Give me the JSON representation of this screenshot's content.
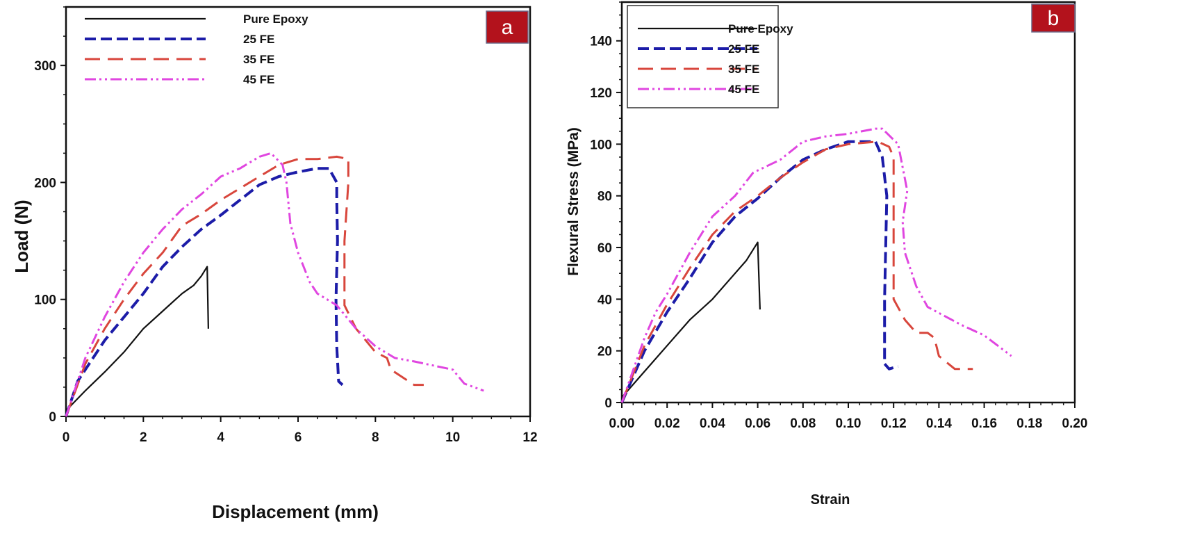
{
  "colors": {
    "pure_epoxy": "#111111",
    "fe25": "#1c1ca8",
    "fe35": "#d8463c",
    "fe45": "#e046e0",
    "badge": "#b3121c"
  },
  "chart_data": [
    {
      "type": "line",
      "panel_label": "a",
      "xlabel": "Displacement (mm)",
      "ylabel": "Load (N)",
      "xlim": [
        0,
        12
      ],
      "ylim": [
        0,
        350
      ],
      "xticks": [
        "0",
        "2",
        "4",
        "6",
        "8",
        "10",
        "12"
      ],
      "xtick_values": [
        0,
        2,
        4,
        6,
        8,
        10,
        12
      ],
      "yticks": [
        "0",
        "100",
        "200",
        "300"
      ],
      "ytick_values": [
        0,
        100,
        200,
        300
      ],
      "legend": "top-left",
      "grid": false,
      "series": [
        {
          "name": "Pure Epoxy",
          "key": "pure_epoxy",
          "points": [
            [
              0,
              5
            ],
            [
              0.5,
              22
            ],
            [
              1,
              38
            ],
            [
              1.5,
              55
            ],
            [
              2,
              75
            ],
            [
              2.5,
              90
            ],
            [
              3,
              105
            ],
            [
              3.3,
              112
            ],
            [
              3.5,
              120
            ],
            [
              3.65,
              128
            ],
            [
              3.68,
              75
            ]
          ]
        },
        {
          "name": "25 FE",
          "key": "fe25",
          "points": [
            [
              0,
              0
            ],
            [
              0.3,
              30
            ],
            [
              1,
              65
            ],
            [
              1.5,
              85
            ],
            [
              2,
              105
            ],
            [
              2.5,
              128
            ],
            [
              3,
              145
            ],
            [
              3.5,
              160
            ],
            [
              4,
              172
            ],
            [
              5,
              198
            ],
            [
              5.5,
              205
            ],
            [
              6,
              209
            ],
            [
              6.5,
              212
            ],
            [
              6.8,
              212
            ],
            [
              7,
              200
            ],
            [
              7,
              185
            ],
            [
              7.02,
              150
            ],
            [
              6.98,
              100
            ],
            [
              7,
              60
            ],
            [
              7.05,
              30
            ],
            [
              7.15,
              27
            ]
          ]
        },
        {
          "name": "35 FE",
          "key": "fe35",
          "points": [
            [
              0,
              0
            ],
            [
              0.5,
              45
            ],
            [
              1,
              75
            ],
            [
              1.5,
              100
            ],
            [
              2,
              122
            ],
            [
              2.5,
              140
            ],
            [
              3,
              163
            ],
            [
              3.5,
              173
            ],
            [
              4,
              185
            ],
            [
              5,
              205
            ],
            [
              5.5,
              215
            ],
            [
              6,
              220
            ],
            [
              6.5,
              220
            ],
            [
              7,
              222
            ],
            [
              7.3,
              220
            ],
            [
              7.3,
              200
            ],
            [
              7.2,
              150
            ],
            [
              7.2,
              95
            ],
            [
              7.5,
              75
            ],
            [
              8,
              55
            ],
            [
              8.3,
              50
            ],
            [
              8.4,
              40
            ],
            [
              9,
              27
            ],
            [
              9.25,
              27
            ]
          ]
        },
        {
          "name": "45 FE",
          "key": "fe45",
          "points": [
            [
              0,
              0
            ],
            [
              0.5,
              50
            ],
            [
              1,
              85
            ],
            [
              1.5,
              115
            ],
            [
              2,
              140
            ],
            [
              2.5,
              160
            ],
            [
              3,
              177
            ],
            [
              3.5,
              190
            ],
            [
              4,
              205
            ],
            [
              4.5,
              212
            ],
            [
              5,
              222
            ],
            [
              5.3,
              225
            ],
            [
              5.6,
              215
            ],
            [
              5.7,
              200
            ],
            [
              5.8,
              165
            ],
            [
              6,
              140
            ],
            [
              6.3,
              115
            ],
            [
              6.5,
              105
            ],
            [
              7,
              95
            ],
            [
              7.5,
              75
            ],
            [
              8,
              60
            ],
            [
              8.5,
              50
            ],
            [
              9,
              47
            ],
            [
              10,
              40
            ],
            [
              10.3,
              28
            ],
            [
              10.8,
              22
            ]
          ]
        }
      ]
    },
    {
      "type": "line",
      "panel_label": "b",
      "xlabel": "Strain",
      "ylabel": "Flexural Stress (MPa)",
      "xlim": [
        0,
        0.2
      ],
      "ylim": [
        0,
        155
      ],
      "xticks": [
        "0.00",
        "0.02",
        "0.04",
        "0.06",
        "0.08",
        "0.10",
        "0.12",
        "0.14",
        "0.16",
        "0.18",
        "0.20"
      ],
      "xtick_values": [
        0,
        0.02,
        0.04,
        0.06,
        0.08,
        0.1,
        0.12,
        0.14,
        0.16,
        0.18,
        0.2
      ],
      "yticks": [
        "0",
        "20",
        "40",
        "60",
        "80",
        "100",
        "120",
        "140"
      ],
      "ytick_values": [
        0,
        20,
        40,
        60,
        80,
        100,
        120,
        140
      ],
      "legend": "top-left (boxed)",
      "grid": false,
      "series": [
        {
          "name": "Pure Epoxy",
          "key": "pure_epoxy",
          "points": [
            [
              0,
              2
            ],
            [
              0.01,
              12
            ],
            [
              0.02,
              22
            ],
            [
              0.03,
              32
            ],
            [
              0.04,
              40
            ],
            [
              0.05,
              50
            ],
            [
              0.055,
              55
            ],
            [
              0.06,
              62
            ],
            [
              0.061,
              36
            ]
          ]
        },
        {
          "name": "25 FE",
          "key": "fe25",
          "points": [
            [
              0,
              0
            ],
            [
              0.01,
              20
            ],
            [
              0.02,
              35
            ],
            [
              0.03,
              48
            ],
            [
              0.04,
              62
            ],
            [
              0.05,
              72
            ],
            [
              0.06,
              79
            ],
            [
              0.07,
              87
            ],
            [
              0.08,
              94
            ],
            [
              0.09,
              98
            ],
            [
              0.1,
              101
            ],
            [
              0.112,
              101
            ],
            [
              0.115,
              95
            ],
            [
              0.117,
              80
            ],
            [
              0.116,
              40
            ],
            [
              0.116,
              15
            ],
            [
              0.118,
              13
            ],
            [
              0.122,
              14
            ]
          ]
        },
        {
          "name": "35 FE",
          "key": "fe35",
          "points": [
            [
              0,
              0
            ],
            [
              0.01,
              22
            ],
            [
              0.02,
              38
            ],
            [
              0.03,
              52
            ],
            [
              0.04,
              65
            ],
            [
              0.05,
              74
            ],
            [
              0.06,
              80
            ],
            [
              0.07,
              87
            ],
            [
              0.08,
              93
            ],
            [
              0.09,
              98
            ],
            [
              0.1,
              100
            ],
            [
              0.113,
              101
            ],
            [
              0.118,
              99
            ],
            [
              0.12,
              95
            ],
            [
              0.12,
              70
            ],
            [
              0.12,
              40
            ],
            [
              0.125,
              32
            ],
            [
              0.13,
              27
            ],
            [
              0.135,
              27
            ],
            [
              0.138,
              25
            ],
            [
              0.14,
              18
            ],
            [
              0.147,
              13
            ],
            [
              0.155,
              13
            ]
          ]
        },
        {
          "name": "45 FE",
          "key": "fe45",
          "points": [
            [
              0,
              0
            ],
            [
              0.01,
              25
            ],
            [
              0.015,
              35
            ],
            [
              0.02,
              42
            ],
            [
              0.03,
              58
            ],
            [
              0.04,
              72
            ],
            [
              0.05,
              80
            ],
            [
              0.058,
              89
            ],
            [
              0.07,
              94
            ],
            [
              0.08,
              101
            ],
            [
              0.09,
              103
            ],
            [
              0.1,
              104
            ],
            [
              0.112,
              106
            ],
            [
              0.115,
              106
            ],
            [
              0.122,
              100
            ],
            [
              0.126,
              82
            ],
            [
              0.124,
              70
            ],
            [
              0.125,
              58
            ],
            [
              0.13,
              45
            ],
            [
              0.135,
              37
            ],
            [
              0.15,
              30
            ],
            [
              0.16,
              26
            ],
            [
              0.172,
              18
            ]
          ]
        }
      ]
    }
  ]
}
